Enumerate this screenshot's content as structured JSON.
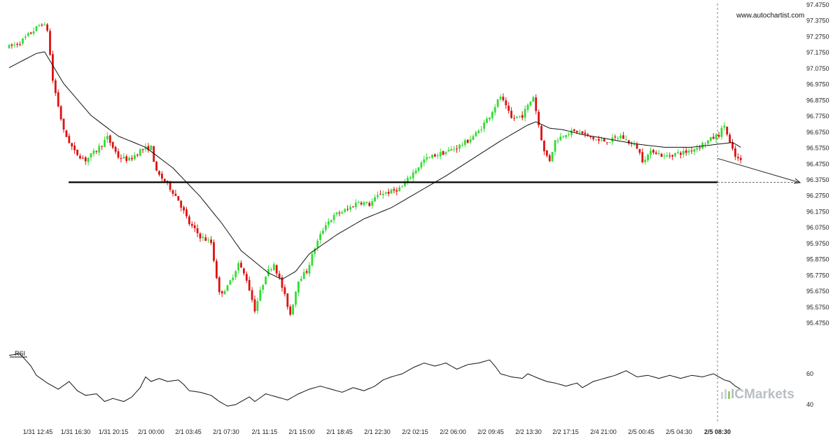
{
  "watermark": "www.autochartist.com",
  "brand": {
    "prefix": "IC",
    "name": "Markets",
    "color": "#b9bec4",
    "accent": "#8fcf6a"
  },
  "colors": {
    "up": "#33dd33",
    "down": "#dd1111",
    "line": "#111111",
    "grid": "#eeeeee"
  },
  "chart_data": {
    "type": "candlestick",
    "title": "",
    "xlabel": "",
    "ylabel": "",
    "ylim": [
      95.42,
      97.475
    ],
    "y_ticks": [
      "97.4750",
      "97.3750",
      "97.2750",
      "97.1750",
      "97.0750",
      "96.9750",
      "96.8750",
      "96.7750",
      "96.6750",
      "96.5750",
      "96.4750",
      "96.3750",
      "96.2750",
      "96.1750",
      "96.0750",
      "95.9750",
      "95.8750",
      "95.7750",
      "95.6750",
      "95.5750",
      "95.4750"
    ],
    "x_ticks": [
      "1/31 12:45",
      "1/31 16:30",
      "1/31 20:15",
      "2/1 00:00",
      "2/1 03:45",
      "2/1 07:30",
      "2/1 11:15",
      "2/1 15:00",
      "2/1 18:45",
      "2/1 22:30",
      "2/2 02:15",
      "2/2 06:00",
      "2/2 09:45",
      "2/2 13:30",
      "2/2 17:15",
      "2/4 21:00",
      "2/5 00:45",
      "2/5 04:30",
      "2/5 08:30"
    ],
    "current_x_label": "2/5 08:30",
    "support_level": 96.36,
    "forecast": {
      "from": 96.51,
      "to": 96.36
    },
    "price_path": [
      [
        0,
        97.21
      ],
      [
        4,
        97.24
      ],
      [
        8,
        97.3
      ],
      [
        12,
        97.36
      ],
      [
        14,
        97.32
      ],
      [
        16,
        97.0
      ],
      [
        20,
        96.68
      ],
      [
        24,
        96.55
      ],
      [
        28,
        96.5
      ],
      [
        32,
        96.56
      ],
      [
        36,
        96.64
      ],
      [
        40,
        96.52
      ],
      [
        44,
        96.5
      ],
      [
        48,
        96.56
      ],
      [
        52,
        96.58
      ],
      [
        54,
        96.42
      ],
      [
        58,
        96.35
      ],
      [
        62,
        96.25
      ],
      [
        66,
        96.1
      ],
      [
        70,
        96.02
      ],
      [
        74,
        95.98
      ],
      [
        77,
        95.66
      ],
      [
        80,
        95.7
      ],
      [
        84,
        95.85
      ],
      [
        87,
        95.75
      ],
      [
        90,
        95.56
      ],
      [
        94,
        95.78
      ],
      [
        97,
        95.85
      ],
      [
        100,
        95.7
      ],
      [
        103,
        95.53
      ],
      [
        106,
        95.75
      ],
      [
        109,
        95.8
      ],
      [
        112,
        95.95
      ],
      [
        116,
        96.1
      ],
      [
        120,
        96.16
      ],
      [
        124,
        96.19
      ],
      [
        128,
        96.24
      ],
      [
        132,
        96.22
      ],
      [
        136,
        96.29
      ],
      [
        140,
        96.3
      ],
      [
        144,
        96.33
      ],
      [
        148,
        96.42
      ],
      [
        152,
        96.5
      ],
      [
        156,
        96.53
      ],
      [
        160,
        96.55
      ],
      [
        164,
        96.58
      ],
      [
        168,
        96.62
      ],
      [
        172,
        96.68
      ],
      [
        176,
        96.78
      ],
      [
        180,
        96.9
      ],
      [
        184,
        96.76
      ],
      [
        188,
        96.78
      ],
      [
        192,
        96.9
      ],
      [
        194,
        96.72
      ],
      [
        196,
        96.55
      ],
      [
        198,
        96.5
      ],
      [
        200,
        96.62
      ],
      [
        204,
        96.67
      ],
      [
        208,
        96.68
      ],
      [
        212,
        96.65
      ],
      [
        216,
        96.62
      ],
      [
        220,
        96.62
      ],
      [
        224,
        96.65
      ],
      [
        228,
        96.6
      ],
      [
        230,
        96.58
      ],
      [
        232,
        96.5
      ],
      [
        236,
        96.56
      ],
      [
        240,
        96.52
      ],
      [
        244,
        96.54
      ],
      [
        248,
        96.55
      ],
      [
        252,
        96.58
      ],
      [
        256,
        96.62
      ],
      [
        260,
        96.66
      ],
      [
        262,
        96.72
      ],
      [
        264,
        96.6
      ],
      [
        266,
        96.52
      ],
      [
        268,
        96.49
      ]
    ],
    "ma_path": [
      [
        0,
        97.08
      ],
      [
        10,
        97.17
      ],
      [
        13,
        97.18
      ],
      [
        20,
        96.98
      ],
      [
        30,
        96.78
      ],
      [
        40,
        96.65
      ],
      [
        50,
        96.58
      ],
      [
        60,
        96.45
      ],
      [
        70,
        96.27
      ],
      [
        78,
        96.1
      ],
      [
        85,
        95.93
      ],
      [
        90,
        95.86
      ],
      [
        95,
        95.79
      ],
      [
        100,
        95.75
      ],
      [
        105,
        95.8
      ],
      [
        110,
        95.91
      ],
      [
        120,
        96.03
      ],
      [
        130,
        96.13
      ],
      [
        140,
        96.2
      ],
      [
        150,
        96.3
      ],
      [
        160,
        96.4
      ],
      [
        170,
        96.51
      ],
      [
        180,
        96.62
      ],
      [
        190,
        96.72
      ],
      [
        193,
        96.74
      ],
      [
        198,
        96.7
      ],
      [
        203,
        96.69
      ],
      [
        210,
        96.66
      ],
      [
        220,
        96.63
      ],
      [
        230,
        96.6
      ],
      [
        240,
        96.58
      ],
      [
        250,
        96.58
      ],
      [
        260,
        96.6
      ],
      [
        265,
        96.61
      ],
      [
        268,
        96.58
      ]
    ],
    "rsi": {
      "label": "RSI",
      "ylim": [
        30,
        80
      ],
      "y_ticks": [
        60,
        40
      ],
      "path": [
        [
          0,
          72
        ],
        [
          4,
          73
        ],
        [
          8,
          65
        ],
        [
          10,
          59
        ],
        [
          14,
          54
        ],
        [
          18,
          50
        ],
        [
          22,
          55
        ],
        [
          25,
          49
        ],
        [
          28,
          46
        ],
        [
          32,
          47
        ],
        [
          35,
          42
        ],
        [
          38,
          44
        ],
        [
          42,
          42
        ],
        [
          45,
          45
        ],
        [
          48,
          51
        ],
        [
          50,
          58
        ],
        [
          52,
          55
        ],
        [
          55,
          57
        ],
        [
          58,
          55
        ],
        [
          62,
          56
        ],
        [
          64,
          53
        ],
        [
          66,
          49
        ],
        [
          70,
          48
        ],
        [
          74,
          46
        ],
        [
          77,
          42
        ],
        [
          80,
          39
        ],
        [
          83,
          40
        ],
        [
          86,
          43
        ],
        [
          88,
          45
        ],
        [
          90,
          42
        ],
        [
          94,
          47
        ],
        [
          98,
          45
        ],
        [
          102,
          43
        ],
        [
          106,
          47
        ],
        [
          110,
          50
        ],
        [
          114,
          52
        ],
        [
          118,
          50
        ],
        [
          122,
          48
        ],
        [
          126,
          51
        ],
        [
          130,
          49
        ],
        [
          134,
          52
        ],
        [
          137,
          56
        ],
        [
          140,
          58
        ],
        [
          144,
          60
        ],
        [
          148,
          64
        ],
        [
          152,
          67
        ],
        [
          156,
          65
        ],
        [
          160,
          67
        ],
        [
          164,
          63
        ],
        [
          168,
          66
        ],
        [
          172,
          67
        ],
        [
          176,
          69
        ],
        [
          178,
          65
        ],
        [
          180,
          60
        ],
        [
          184,
          58
        ],
        [
          188,
          57
        ],
        [
          190,
          60
        ],
        [
          194,
          57
        ],
        [
          197,
          55
        ],
        [
          200,
          54
        ],
        [
          204,
          52
        ],
        [
          208,
          54
        ],
        [
          210,
          51
        ],
        [
          214,
          55
        ],
        [
          218,
          57
        ],
        [
          222,
          59
        ],
        [
          226,
          62
        ],
        [
          228,
          60
        ],
        [
          230,
          58
        ],
        [
          234,
          59
        ],
        [
          238,
          57
        ],
        [
          242,
          59
        ],
        [
          246,
          57
        ],
        [
          250,
          59
        ],
        [
          254,
          58
        ],
        [
          258,
          60
        ],
        [
          262,
          56
        ],
        [
          264,
          55
        ],
        [
          266,
          52
        ],
        [
          268,
          50
        ]
      ]
    }
  }
}
